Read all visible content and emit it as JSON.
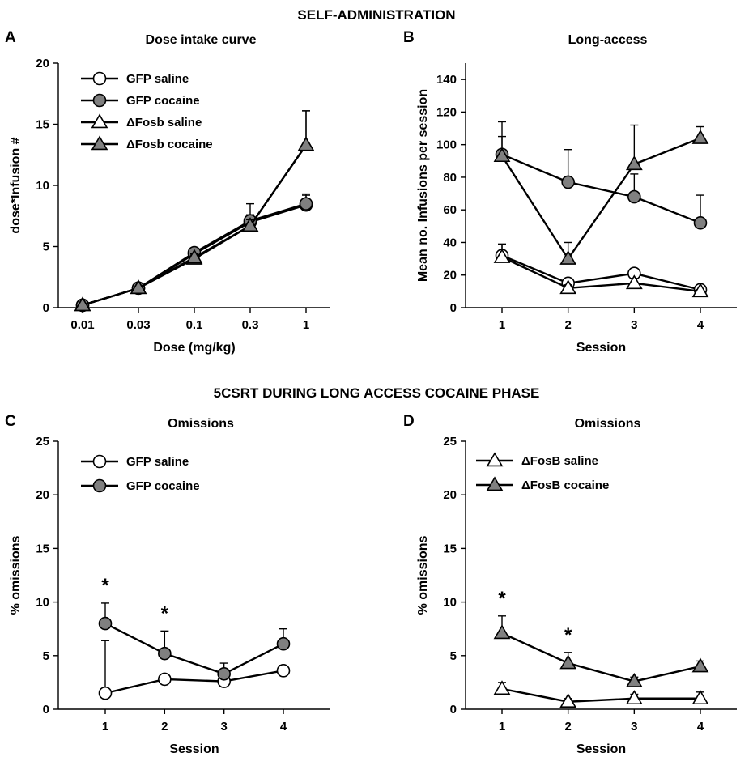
{
  "figure": {
    "section_top": "SELF-ADMINISTRATION",
    "section_bottom": "5CSRT DURING LONG ACCESS COCAINE PHASE"
  },
  "colors": {
    "saline_fill": "#ffffff",
    "cocaine_fill": "#808080",
    "stroke": "#000000"
  },
  "chart_data": [
    {
      "panel": "A",
      "type": "line",
      "title": "Dose intake curve",
      "xlabel": "Dose (mg/kg)",
      "ylabel": "dose*Infusion #",
      "categories": [
        "0.01",
        "0.03",
        "0.1",
        "0.3",
        "1"
      ],
      "ylim": [
        0,
        20
      ],
      "yticks": [
        0,
        5,
        10,
        15,
        20
      ],
      "legend_position": "top-left",
      "series": [
        {
          "name": "GFP saline",
          "marker": "circle",
          "fill": "saline",
          "values": [
            0.2,
            1.6,
            4.4,
            7.0,
            8.4
          ],
          "err": [
            0.1,
            0.1,
            0.3,
            0.6,
            0.8
          ]
        },
        {
          "name": "GFP cocaine",
          "marker": "circle",
          "fill": "cocaine",
          "values": [
            0.2,
            1.6,
            4.5,
            7.1,
            8.5
          ],
          "err": [
            0.1,
            0.1,
            0.3,
            1.4,
            0.8
          ]
        },
        {
          "name": "ΔFosb saline",
          "marker": "triangle",
          "fill": "saline",
          "values": [
            0.2,
            1.6,
            4.0,
            6.7,
            13.3
          ],
          "err": [
            0.1,
            0.1,
            0.3,
            0.5,
            2.8
          ]
        },
        {
          "name": "ΔFosb cocaine",
          "marker": "triangle",
          "fill": "cocaine",
          "values": [
            0.2,
            1.6,
            4.1,
            6.7,
            13.3
          ],
          "err": [
            0.1,
            0.1,
            0.3,
            0.5,
            2.8
          ]
        }
      ]
    },
    {
      "panel": "B",
      "type": "line",
      "title": "Long-access",
      "xlabel": "Session",
      "ylabel": "Mean no. Infusions per session",
      "categories": [
        "1",
        "2",
        "3",
        "4"
      ],
      "ylim": [
        0,
        150
      ],
      "yticks": [
        0,
        20,
        40,
        60,
        80,
        100,
        120,
        140
      ],
      "series": [
        {
          "marker": "circle",
          "fill": "saline",
          "values": [
            32,
            15,
            21,
            11
          ],
          "err": [
            7,
            2,
            3,
            1
          ]
        },
        {
          "marker": "circle",
          "fill": "cocaine",
          "values": [
            94,
            77,
            68,
            52
          ],
          "err": [
            20,
            20,
            14,
            17
          ]
        },
        {
          "marker": "triangle",
          "fill": "saline",
          "values": [
            31,
            12,
            15,
            10
          ],
          "err": [
            8,
            2,
            3,
            1
          ]
        },
        {
          "marker": "triangle",
          "fill": "cocaine",
          "values": [
            93,
            30,
            88,
            104
          ],
          "err": [
            12,
            10,
            24,
            7
          ]
        }
      ]
    },
    {
      "panel": "C",
      "type": "line",
      "title": "Omissions",
      "xlabel": "Session",
      "ylabel": "% omissions",
      "categories": [
        "1",
        "2",
        "3",
        "4"
      ],
      "ylim": [
        0,
        25
      ],
      "yticks": [
        0,
        5,
        10,
        15,
        20,
        25
      ],
      "legend_position": "top-left",
      "significance": [
        "*",
        "*",
        "",
        ""
      ],
      "series": [
        {
          "name": "GFP saline",
          "marker": "circle",
          "fill": "saline",
          "values": [
            1.5,
            2.8,
            2.6,
            3.6
          ],
          "err": [
            4.9,
            0.4,
            0.3,
            0.5
          ]
        },
        {
          "name": "GFP cocaine",
          "marker": "circle",
          "fill": "cocaine",
          "values": [
            8.0,
            5.2,
            3.3,
            6.1
          ],
          "err": [
            1.9,
            2.1,
            1.0,
            1.4
          ]
        }
      ]
    },
    {
      "panel": "D",
      "type": "line",
      "title": "Omissions",
      "xlabel": "Session",
      "ylabel": "% omissions",
      "categories": [
        "1",
        "2",
        "3",
        "4"
      ],
      "ylim": [
        0,
        25
      ],
      "yticks": [
        0,
        5,
        10,
        15,
        20,
        25
      ],
      "legend_position": "top-left",
      "significance": [
        "*",
        "*",
        "",
        ""
      ],
      "series": [
        {
          "name": "ΔFosB saline",
          "marker": "triangle",
          "fill": "saline",
          "values": [
            1.9,
            0.7,
            1.0,
            1.0
          ],
          "err": [
            0.6,
            0.3,
            0.4,
            0.6
          ]
        },
        {
          "name": "ΔFosB cocaine",
          "marker": "triangle",
          "fill": "cocaine",
          "values": [
            7.1,
            4.3,
            2.6,
            4.0
          ],
          "err": [
            1.6,
            1.0,
            0.4,
            0.5
          ]
        }
      ]
    }
  ]
}
